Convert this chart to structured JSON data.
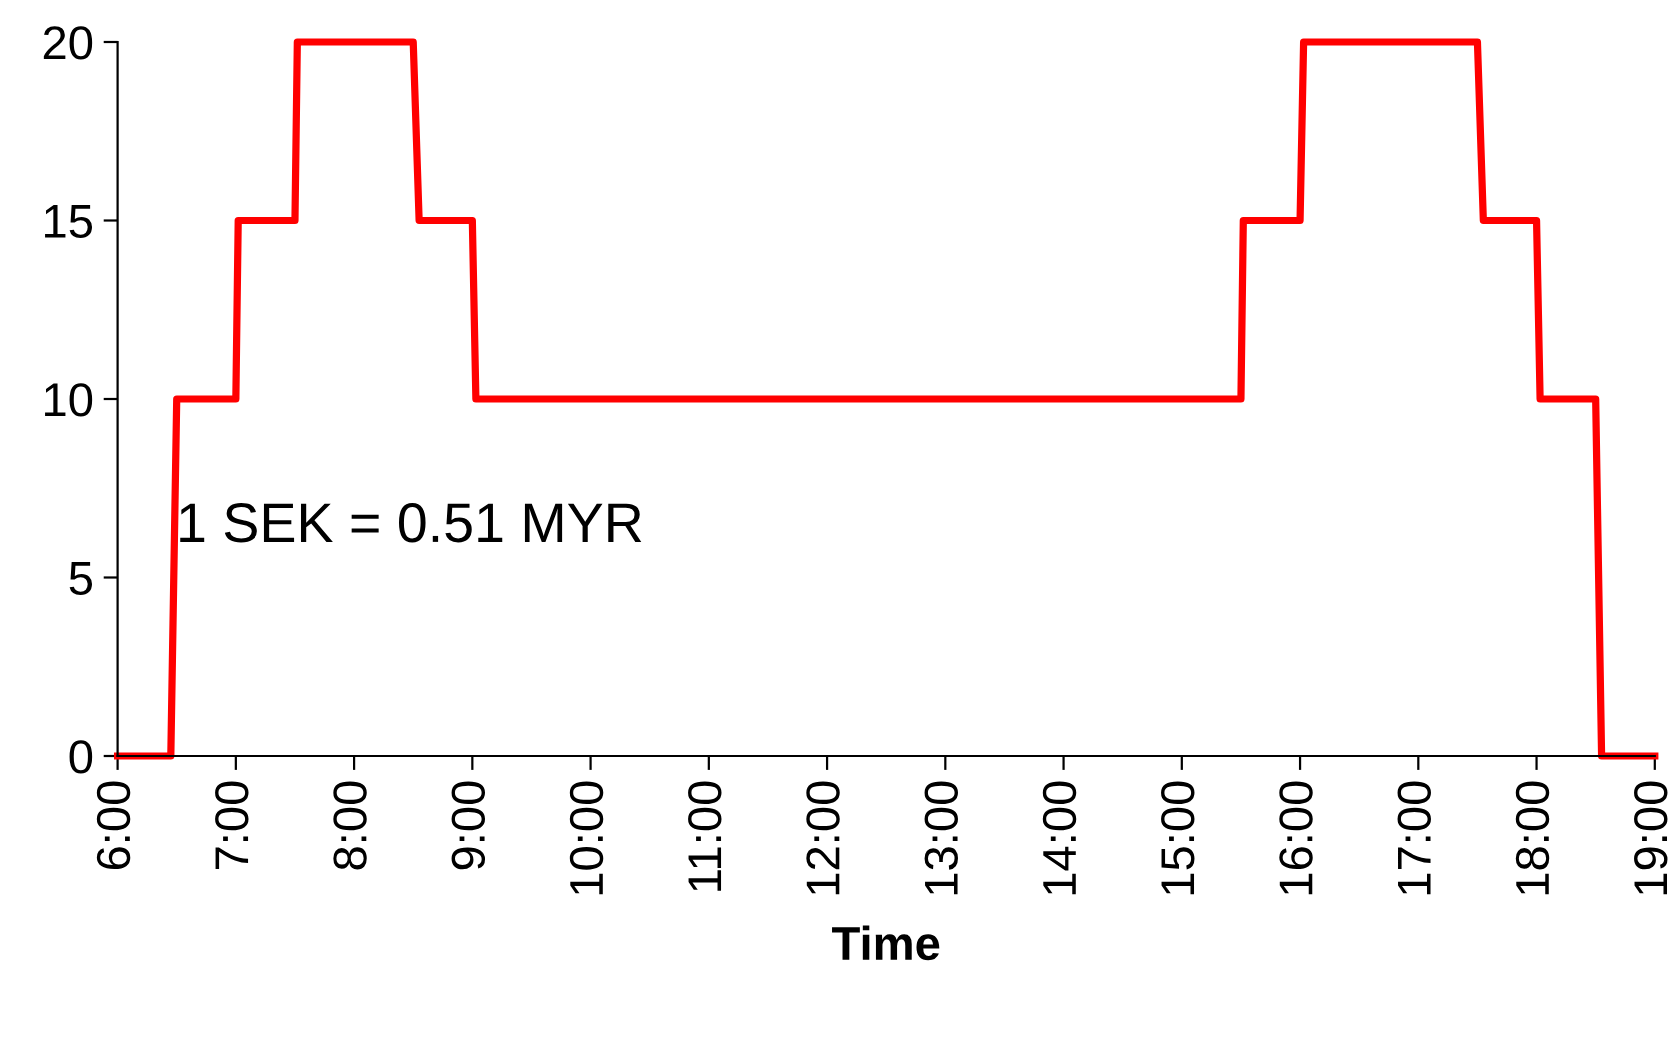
{
  "chart_data": {
    "type": "line",
    "xlabel": "Time",
    "x": [
      6,
      6.45,
      6.5,
      7,
      7.02,
      7.5,
      7.52,
      8.5,
      8.55,
      9,
      9.03,
      15.5,
      15.52,
      16,
      16.03,
      17.5,
      17.55,
      18,
      18.03,
      18.5,
      18.55,
      19
    ],
    "series": [
      {
        "color": "#ff0000",
        "values": [
          0,
          0,
          10,
          10,
          15,
          15,
          20,
          20,
          15,
          15,
          10,
          10,
          15,
          15,
          20,
          20,
          15,
          15,
          10,
          10,
          0,
          0
        ]
      }
    ],
    "xlim": [
      6,
      19
    ],
    "xticks": [
      {
        "value": 6,
        "label": "6:00"
      },
      {
        "value": 7,
        "label": "7:00"
      },
      {
        "value": 8,
        "label": "8:00"
      },
      {
        "value": 9,
        "label": "9:00"
      },
      {
        "value": 10,
        "label": "10:00"
      },
      {
        "value": 11,
        "label": "11:00"
      },
      {
        "value": 12,
        "label": "12:00"
      },
      {
        "value": 13,
        "label": "13:00"
      },
      {
        "value": 14,
        "label": "14:00"
      },
      {
        "value": 15,
        "label": "15:00"
      },
      {
        "value": 16,
        "label": "16:00"
      },
      {
        "value": 17,
        "label": "17:00"
      },
      {
        "value": 18,
        "label": "18:00"
      },
      {
        "value": 19,
        "label": "19:00"
      }
    ],
    "ylim": [
      0,
      20
    ],
    "yticks": [
      0,
      5,
      10,
      15,
      20
    ],
    "annotations": [
      "1 SEK = 0.51 MYR"
    ],
    "grid": false,
    "legend": false,
    "marker": "none",
    "line_style": "solid"
  }
}
